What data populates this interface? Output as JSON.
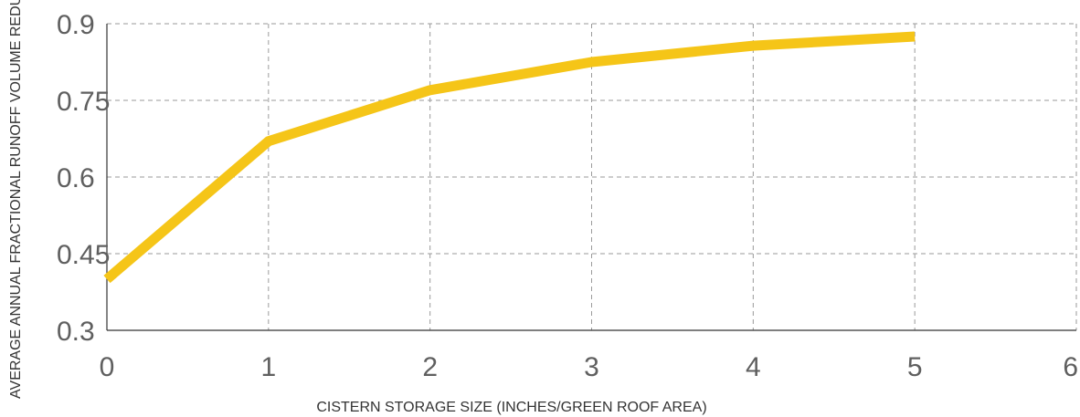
{
  "chart_data": {
    "type": "line",
    "title": "",
    "xlabel": "CISTERN STORAGE SIZE (INCHES/GREEN ROOF AREA)",
    "ylabel": "AVERAGE ANNUAL FRACTIONAL RUNOFF VOLUME REDUCTION",
    "xlim": [
      0,
      6
    ],
    "ylim": [
      0.3,
      0.9
    ],
    "x_ticks": [
      "0",
      "1",
      "2",
      "3",
      "4",
      "5",
      "6"
    ],
    "y_ticks": [
      "0.3",
      "0.45",
      "0.6",
      "0.75",
      "0.9"
    ],
    "grid": true,
    "series": [
      {
        "x": [
          0,
          1,
          2,
          3,
          4,
          5
        ],
        "y": [
          0.4,
          0.67,
          0.77,
          0.825,
          0.857,
          0.875
        ],
        "color": "#F5C518"
      }
    ]
  }
}
